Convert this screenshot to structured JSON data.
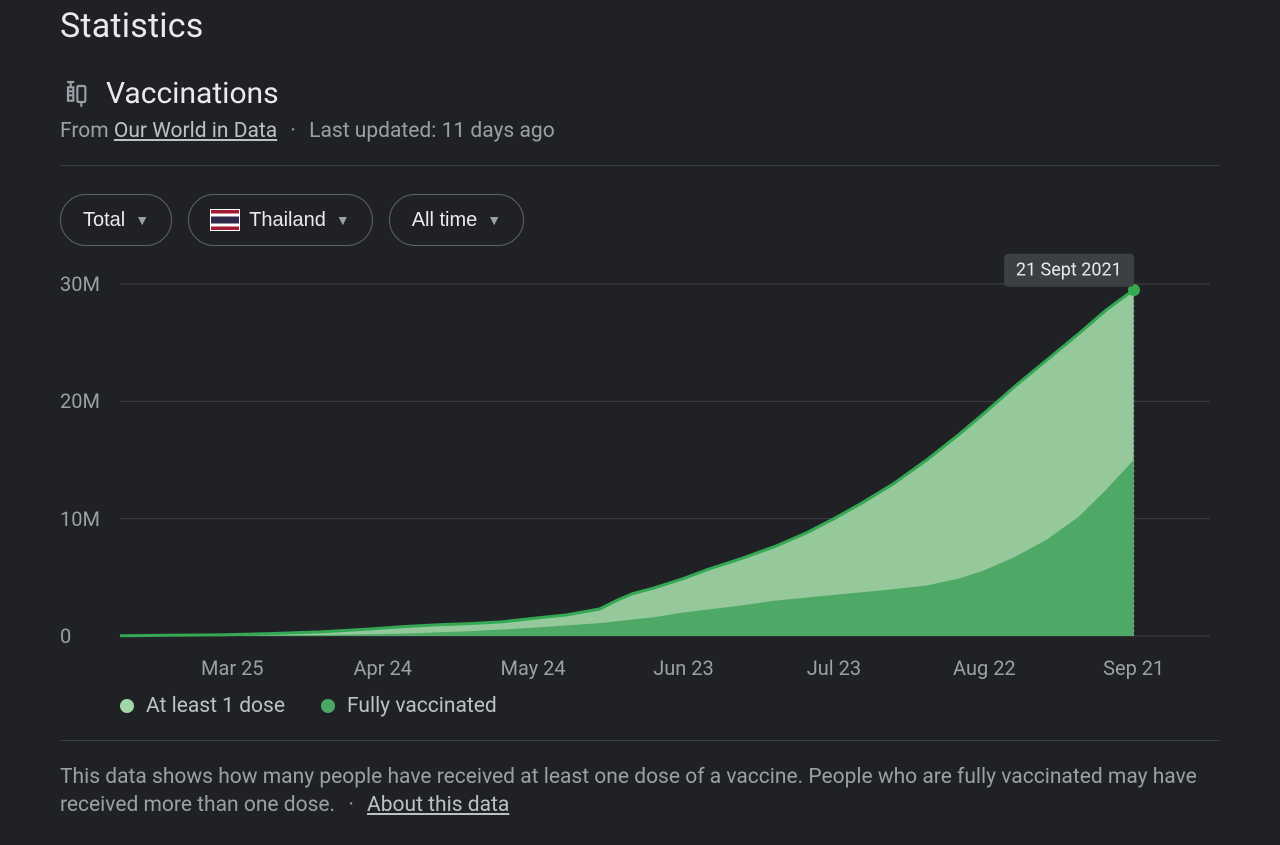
{
  "page": {
    "title": "Statistics",
    "section_title": "Vaccinations",
    "from_label": "From",
    "source_name": "Our World in Data",
    "updated_label": "Last updated: 11 days ago"
  },
  "filters": {
    "metric": "Total",
    "region": "Thailand",
    "range": "All time",
    "flag_colors": {
      "red": "#a51931",
      "white": "#ffffff",
      "blue": "#2d2a4a"
    }
  },
  "chart": {
    "type": "area",
    "background": "#202124",
    "grid_color": "#3c4043",
    "axis_label_color": "#9aa0a6",
    "axis_fontsize": 20,
    "ylim": [
      0,
      30
    ],
    "y_ticks": [
      0,
      10,
      20,
      30
    ],
    "y_tick_labels": [
      "0",
      "10M",
      "20M",
      "30M"
    ],
    "x_ticks": [
      0.103,
      0.241,
      0.379,
      0.517,
      0.655,
      0.793,
      0.93
    ],
    "x_tick_labels": [
      "Mar 25",
      "Apr 24",
      "May 24",
      "Jun 23",
      "Jul 23",
      "Aug 22",
      "Sep 21"
    ],
    "date_badge": "21 Sept 2021",
    "marker_color": "#34a853",
    "marker_line_color": "#9aa0a6",
    "series": [
      {
        "name": "At least 1 dose",
        "fill": "#9fd7a6",
        "stroke": "#34a853",
        "stroke_width": 3,
        "points": [
          [
            0.0,
            0.02
          ],
          [
            0.046,
            0.06
          ],
          [
            0.092,
            0.1
          ],
          [
            0.138,
            0.2
          ],
          [
            0.184,
            0.35
          ],
          [
            0.23,
            0.6
          ],
          [
            0.26,
            0.8
          ],
          [
            0.29,
            0.95
          ],
          [
            0.32,
            1.05
          ],
          [
            0.35,
            1.2
          ],
          [
            0.379,
            1.5
          ],
          [
            0.41,
            1.8
          ],
          [
            0.44,
            2.3
          ],
          [
            0.455,
            3.0
          ],
          [
            0.47,
            3.6
          ],
          [
            0.49,
            4.1
          ],
          [
            0.517,
            4.9
          ],
          [
            0.54,
            5.7
          ],
          [
            0.57,
            6.6
          ],
          [
            0.6,
            7.6
          ],
          [
            0.63,
            8.8
          ],
          [
            0.655,
            10.0
          ],
          [
            0.68,
            11.3
          ],
          [
            0.71,
            13.0
          ],
          [
            0.74,
            15.0
          ],
          [
            0.77,
            17.2
          ],
          [
            0.793,
            19.0
          ],
          [
            0.82,
            21.2
          ],
          [
            0.85,
            23.5
          ],
          [
            0.88,
            25.8
          ],
          [
            0.905,
            27.8
          ],
          [
            0.93,
            29.5
          ]
        ]
      },
      {
        "name": "Fully vaccinated",
        "fill": "#4aa864",
        "stroke": "none",
        "stroke_width": 0,
        "points": [
          [
            0.0,
            0.0
          ],
          [
            0.092,
            0.02
          ],
          [
            0.184,
            0.08
          ],
          [
            0.26,
            0.2
          ],
          [
            0.32,
            0.4
          ],
          [
            0.379,
            0.7
          ],
          [
            0.44,
            1.1
          ],
          [
            0.49,
            1.6
          ],
          [
            0.517,
            2.0
          ],
          [
            0.57,
            2.6
          ],
          [
            0.6,
            3.0
          ],
          [
            0.655,
            3.5
          ],
          [
            0.7,
            3.9
          ],
          [
            0.74,
            4.3
          ],
          [
            0.77,
            4.9
          ],
          [
            0.793,
            5.6
          ],
          [
            0.82,
            6.7
          ],
          [
            0.85,
            8.2
          ],
          [
            0.88,
            10.2
          ],
          [
            0.905,
            12.5
          ],
          [
            0.93,
            15.0
          ]
        ]
      }
    ]
  },
  "legend": [
    {
      "label": "At least 1 dose",
      "color": "#9fd7a6"
    },
    {
      "label": "Fully vaccinated",
      "color": "#4aa864"
    }
  ],
  "footer": {
    "text": "This data shows how many people have received at least one dose of a vaccine. People who are fully vaccinated may have received more than one dose.",
    "about_label": "About this data"
  }
}
